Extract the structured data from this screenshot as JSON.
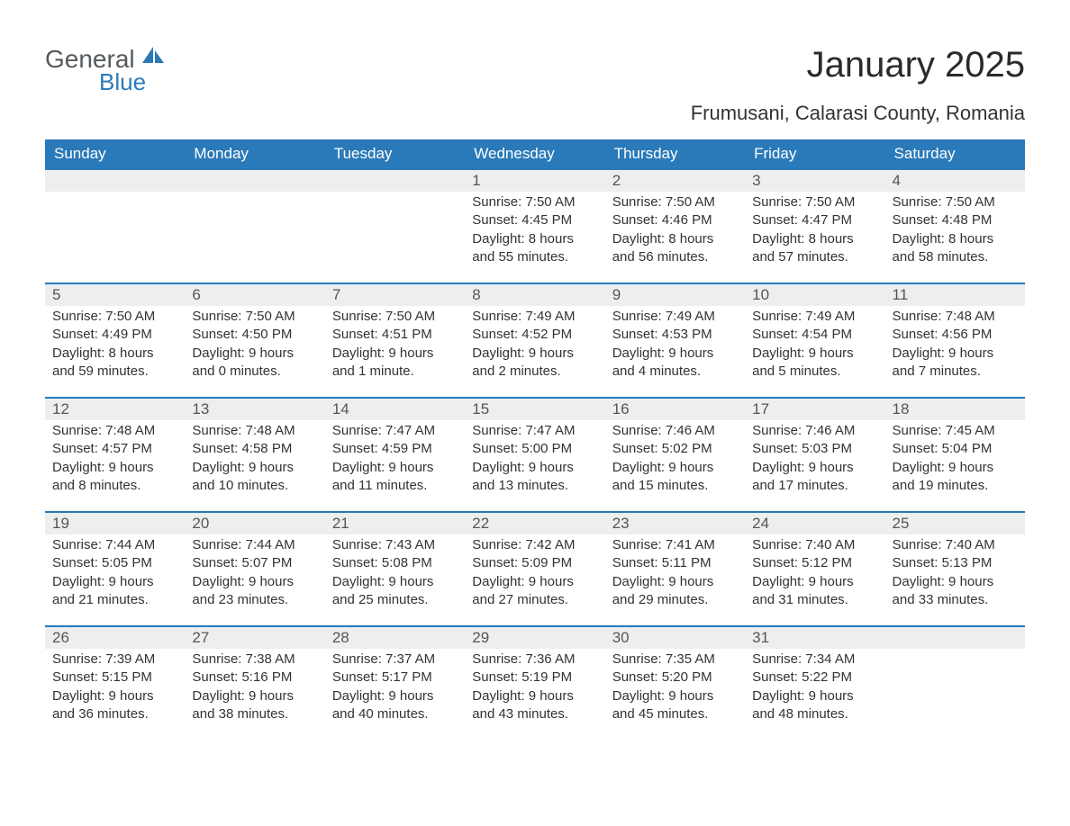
{
  "brand": {
    "general": "General",
    "blue": "Blue"
  },
  "title": "January 2025",
  "location": "Frumusani, Calarasi County, Romania",
  "colors": {
    "header_bg": "#2a7ab9",
    "header_text": "#ffffff",
    "daynum_bg": "#edeeee",
    "daynum_border": "#2a7ab9",
    "body_text": "#333333",
    "page_bg": "#ffffff",
    "logo_gray": "#555a5e",
    "logo_blue": "#2a7ab9"
  },
  "typography": {
    "title_fontsize": 40,
    "location_fontsize": 22,
    "header_fontsize": 17,
    "daynum_fontsize": 17,
    "body_fontsize": 15
  },
  "columns": [
    "Sunday",
    "Monday",
    "Tuesday",
    "Wednesday",
    "Thursday",
    "Friday",
    "Saturday"
  ],
  "labels": {
    "sunrise": "Sunrise:",
    "sunset": "Sunset:",
    "daylight": "Daylight:"
  },
  "weeks": [
    [
      null,
      null,
      null,
      {
        "n": "1",
        "sr": "7:50 AM",
        "ss": "4:45 PM",
        "dl": "8 hours and 55 minutes."
      },
      {
        "n": "2",
        "sr": "7:50 AM",
        "ss": "4:46 PM",
        "dl": "8 hours and 56 minutes."
      },
      {
        "n": "3",
        "sr": "7:50 AM",
        "ss": "4:47 PM",
        "dl": "8 hours and 57 minutes."
      },
      {
        "n": "4",
        "sr": "7:50 AM",
        "ss": "4:48 PM",
        "dl": "8 hours and 58 minutes."
      }
    ],
    [
      {
        "n": "5",
        "sr": "7:50 AM",
        "ss": "4:49 PM",
        "dl": "8 hours and 59 minutes."
      },
      {
        "n": "6",
        "sr": "7:50 AM",
        "ss": "4:50 PM",
        "dl": "9 hours and 0 minutes."
      },
      {
        "n": "7",
        "sr": "7:50 AM",
        "ss": "4:51 PM",
        "dl": "9 hours and 1 minute."
      },
      {
        "n": "8",
        "sr": "7:49 AM",
        "ss": "4:52 PM",
        "dl": "9 hours and 2 minutes."
      },
      {
        "n": "9",
        "sr": "7:49 AM",
        "ss": "4:53 PM",
        "dl": "9 hours and 4 minutes."
      },
      {
        "n": "10",
        "sr": "7:49 AM",
        "ss": "4:54 PM",
        "dl": "9 hours and 5 minutes."
      },
      {
        "n": "11",
        "sr": "7:48 AM",
        "ss": "4:56 PM",
        "dl": "9 hours and 7 minutes."
      }
    ],
    [
      {
        "n": "12",
        "sr": "7:48 AM",
        "ss": "4:57 PM",
        "dl": "9 hours and 8 minutes."
      },
      {
        "n": "13",
        "sr": "7:48 AM",
        "ss": "4:58 PM",
        "dl": "9 hours and 10 minutes."
      },
      {
        "n": "14",
        "sr": "7:47 AM",
        "ss": "4:59 PM",
        "dl": "9 hours and 11 minutes."
      },
      {
        "n": "15",
        "sr": "7:47 AM",
        "ss": "5:00 PM",
        "dl": "9 hours and 13 minutes."
      },
      {
        "n": "16",
        "sr": "7:46 AM",
        "ss": "5:02 PM",
        "dl": "9 hours and 15 minutes."
      },
      {
        "n": "17",
        "sr": "7:46 AM",
        "ss": "5:03 PM",
        "dl": "9 hours and 17 minutes."
      },
      {
        "n": "18",
        "sr": "7:45 AM",
        "ss": "5:04 PM",
        "dl": "9 hours and 19 minutes."
      }
    ],
    [
      {
        "n": "19",
        "sr": "7:44 AM",
        "ss": "5:05 PM",
        "dl": "9 hours and 21 minutes."
      },
      {
        "n": "20",
        "sr": "7:44 AM",
        "ss": "5:07 PM",
        "dl": "9 hours and 23 minutes."
      },
      {
        "n": "21",
        "sr": "7:43 AM",
        "ss": "5:08 PM",
        "dl": "9 hours and 25 minutes."
      },
      {
        "n": "22",
        "sr": "7:42 AM",
        "ss": "5:09 PM",
        "dl": "9 hours and 27 minutes."
      },
      {
        "n": "23",
        "sr": "7:41 AM",
        "ss": "5:11 PM",
        "dl": "9 hours and 29 minutes."
      },
      {
        "n": "24",
        "sr": "7:40 AM",
        "ss": "5:12 PM",
        "dl": "9 hours and 31 minutes."
      },
      {
        "n": "25",
        "sr": "7:40 AM",
        "ss": "5:13 PM",
        "dl": "9 hours and 33 minutes."
      }
    ],
    [
      {
        "n": "26",
        "sr": "7:39 AM",
        "ss": "5:15 PM",
        "dl": "9 hours and 36 minutes."
      },
      {
        "n": "27",
        "sr": "7:38 AM",
        "ss": "5:16 PM",
        "dl": "9 hours and 38 minutes."
      },
      {
        "n": "28",
        "sr": "7:37 AM",
        "ss": "5:17 PM",
        "dl": "9 hours and 40 minutes."
      },
      {
        "n": "29",
        "sr": "7:36 AM",
        "ss": "5:19 PM",
        "dl": "9 hours and 43 minutes."
      },
      {
        "n": "30",
        "sr": "7:35 AM",
        "ss": "5:20 PM",
        "dl": "9 hours and 45 minutes."
      },
      {
        "n": "31",
        "sr": "7:34 AM",
        "ss": "5:22 PM",
        "dl": "9 hours and 48 minutes."
      },
      null
    ]
  ]
}
